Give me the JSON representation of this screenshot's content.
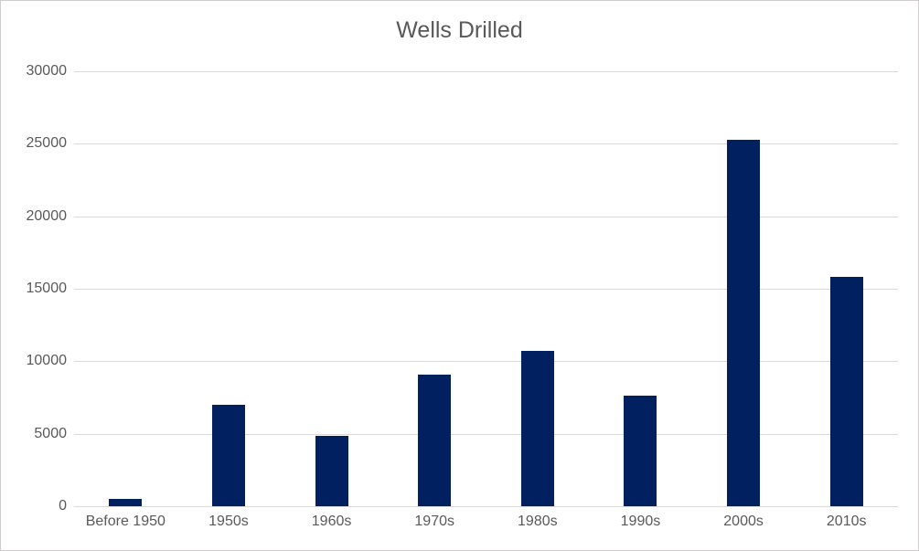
{
  "chart_data": {
    "type": "bar",
    "title": "Wells Drilled",
    "categories": [
      "Before 1950",
      "1950s",
      "1960s",
      "1970s",
      "1980s",
      "1990s",
      "2000s",
      "2010s"
    ],
    "values": [
      500,
      7000,
      4850,
      9100,
      10700,
      7650,
      25300,
      15850
    ],
    "xlabel": "",
    "ylabel": "",
    "ylim": [
      0,
      30000
    ],
    "yticks": [
      0,
      5000,
      10000,
      15000,
      20000,
      25000,
      30000
    ],
    "grid": true,
    "legend": false,
    "legend_position": "none",
    "bar_color": "#002060",
    "gridline_color": "#d9d9d9",
    "axis_line_color": "#d9d9d9",
    "text_color": "#595959",
    "title_color": "#595959",
    "background_color": "#ffffff",
    "frame_border_color": "#cfcdcd"
  }
}
